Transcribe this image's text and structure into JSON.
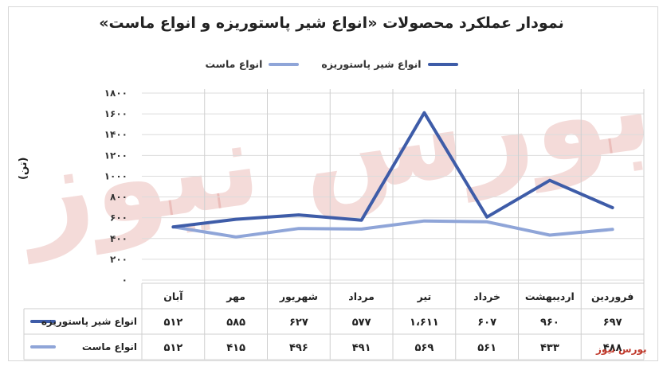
{
  "chart_data": {
    "type": "line",
    "title": "نمودار عملکرد محصولات «انواع شیر پاستوریزه و انواع ماست»",
    "ylabel": "(تن)",
    "ylim": [
      0,
      1800
    ],
    "y_ticks": [
      "۰",
      "۲۰۰",
      "۴۰۰",
      "۶۰۰",
      "۸۰۰",
      "۱۰۰۰",
      "۱۲۰۰",
      "۱۴۰۰",
      "۱۶۰۰",
      "۱۸۰۰"
    ],
    "y_tick_values": [
      0,
      200,
      400,
      600,
      800,
      1000,
      1200,
      1400,
      1600,
      1800
    ],
    "categories": [
      "فروردین",
      "اردیبهشت",
      "خرداد",
      "تیر",
      "مرداد",
      "شهریور",
      "مهر",
      "آبان"
    ],
    "series": [
      {
        "name": "انواع شیر پاستوریزه",
        "color": "#3e5ca8",
        "values": [
          697,
          960,
          607,
          1611,
          577,
          627,
          585,
          512
        ],
        "labels": [
          "۶۹۷",
          "۹۶۰",
          "۶۰۷",
          "۱،۶۱۱",
          "۵۷۷",
          "۶۲۷",
          "۵۸۵",
          "۵۱۲"
        ]
      },
      {
        "name": "انواع ماست",
        "color": "#8fa5d8",
        "values": [
          488,
          433,
          561,
          569,
          491,
          496,
          415,
          512
        ],
        "labels": [
          "۴۸۸",
          "۴۳۳",
          "۵۶۱",
          "۵۶۹",
          "۴۹۱",
          "۴۹۶",
          "۴۱۵",
          "۵۱۲"
        ]
      }
    ],
    "grid": true,
    "legend_position": "top"
  },
  "watermark": {
    "text": "بورس نیوز",
    "large_text": "بورس نیوز",
    "color": "#c0392b"
  }
}
